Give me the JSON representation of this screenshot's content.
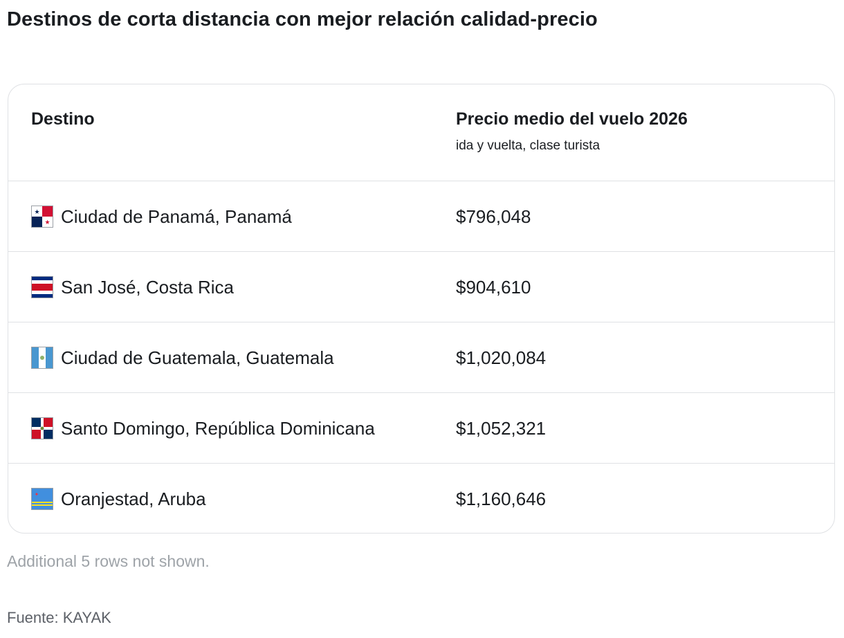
{
  "page": {
    "title": "Destinos de corta distancia con mejor relación calidad-precio",
    "footnote": "Additional 5 rows not shown.",
    "source": "Fuente: KAYAK"
  },
  "table": {
    "headers": {
      "destination": "Destino",
      "price": "Precio medio del vuelo 2026",
      "price_sub": "ida y vuelta, clase turista"
    },
    "rows": [
      {
        "flag_icon": "panama-flag-icon",
        "destination": "Ciudad de Panamá, Panamá",
        "price": "$796,048"
      },
      {
        "flag_icon": "costa-rica-flag-icon",
        "destination": "San José, Costa Rica",
        "price": "$904,610"
      },
      {
        "flag_icon": "guatemala-flag-icon",
        "destination": "Ciudad de Guatemala, Guatemala",
        "price": "$1,020,084"
      },
      {
        "flag_icon": "dominican-republic-flag-icon",
        "destination": "Santo Domingo, República Dominicana",
        "price": "$1,052,321"
      },
      {
        "flag_icon": "aruba-flag-icon",
        "destination": "Oranjestad, Aruba",
        "price": "$1,160,646"
      }
    ]
  },
  "colors": {
    "text": "#1a1d21",
    "border": "#dfe1e4",
    "muted": "#9ea3a8"
  }
}
